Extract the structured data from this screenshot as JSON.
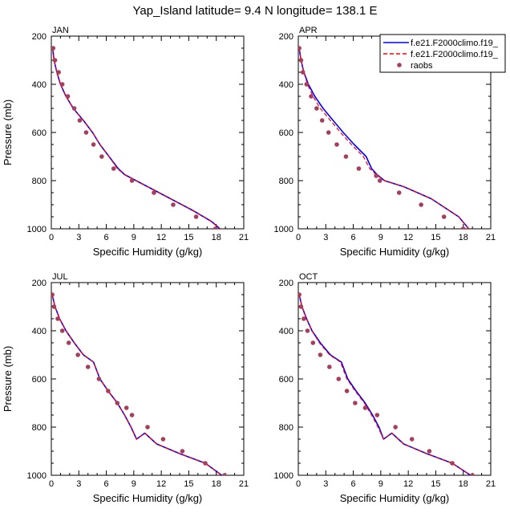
{
  "figure": {
    "title": "Yap_Island  latitude= 9.4 N longitude= 138.1 E"
  },
  "colors": {
    "model1": "#0000ff",
    "model2": "#ff0000",
    "raobs": "#a4405c"
  },
  "legend": {
    "placement": "top-right of APR panel",
    "entries": [
      {
        "label": "f.e21.F2000climo.f19_",
        "style": "solid-line",
        "color": "#0000ff"
      },
      {
        "label": "f.e21.F2000climo.f19_",
        "style": "dashed-line",
        "color": "#ff0000"
      },
      {
        "label": "raobs",
        "style": "marker",
        "color": "#a4405c"
      }
    ]
  },
  "chart_data": [
    {
      "type": "line",
      "panel": "JAN",
      "title": "JAN",
      "xlabel": "Specific Humidity (g/kg)",
      "ylabel": "Pressure (mb)",
      "xlim": [
        0,
        21
      ],
      "ylim": [
        1000,
        200
      ],
      "y_reversed": true,
      "xticks": [
        "0",
        "3",
        "6",
        "9",
        "12",
        "15",
        "18",
        "21"
      ],
      "yticks": [
        "200",
        "400",
        "600",
        "800",
        "1000"
      ],
      "series": [
        {
          "name": "f.e21.F2000climo.f19_",
          "style": "solid",
          "color": "#0000ff",
          "x": [
            0.15,
            0.3,
            0.6,
            1.0,
            1.6,
            2.4,
            3.5,
            4.5,
            5.3,
            6.3,
            7.3,
            8.0,
            10.5,
            13.0,
            15.5,
            17.5,
            18.4
          ],
          "y": [
            250,
            300,
            350,
            400,
            450,
            500,
            550,
            600,
            650,
            700,
            750,
            775,
            825,
            875,
            925,
            970,
            1000
          ]
        },
        {
          "name": "f.e21.F2000climo.f19_",
          "style": "dashed",
          "color": "#ff0000",
          "x": [
            0.15,
            0.3,
            0.6,
            1.0,
            1.6,
            2.4,
            3.5,
            4.5,
            5.3,
            6.3,
            7.2,
            8.0,
            10.5,
            13.0,
            15.5,
            17.5,
            18.4
          ],
          "y": [
            250,
            300,
            350,
            400,
            450,
            500,
            550,
            600,
            650,
            700,
            750,
            775,
            825,
            875,
            925,
            970,
            1000
          ]
        },
        {
          "name": "raobs",
          "style": "marker",
          "color": "#a4405c",
          "x": [
            0.2,
            0.4,
            0.8,
            1.2,
            1.8,
            2.5,
            3.1,
            3.8,
            4.6,
            5.5,
            6.8,
            8.8,
            11.2,
            13.3,
            15.8,
            17.9
          ],
          "y": [
            250,
            300,
            350,
            400,
            450,
            500,
            550,
            600,
            650,
            700,
            750,
            800,
            850,
            900,
            950,
            1000
          ]
        }
      ]
    },
    {
      "type": "line",
      "panel": "APR",
      "title": "APR",
      "xlabel": "Specific Humidity (g/kg)",
      "ylabel": "",
      "xlim": [
        0,
        21
      ],
      "ylim": [
        1000,
        200
      ],
      "y_reversed": true,
      "xticks": [
        "0",
        "3",
        "6",
        "9",
        "12",
        "15",
        "18",
        "21"
      ],
      "yticks": [
        "200",
        "400",
        "600",
        "800",
        "1000"
      ],
      "series": [
        {
          "name": "f.e21.F2000climo.f19_",
          "style": "solid",
          "color": "#0000ff",
          "x": [
            0.1,
            0.3,
            0.6,
            1.1,
            1.8,
            2.7,
            3.8,
            4.9,
            6.1,
            7.4,
            8.0,
            8.6,
            9.4,
            11.5,
            14.5,
            17.5,
            18.6
          ],
          "y": [
            250,
            300,
            350,
            400,
            450,
            500,
            550,
            600,
            650,
            700,
            750,
            775,
            800,
            825,
            875,
            950,
            1000
          ]
        },
        {
          "name": "f.e21.F2000climo.f19_",
          "style": "dashed",
          "color": "#ff0000",
          "x": [
            0.1,
            0.3,
            0.6,
            1.0,
            1.6,
            2.4,
            3.5,
            4.6,
            5.8,
            7.1,
            7.8,
            8.5,
            9.4,
            11.5,
            14.5,
            17.5,
            18.6
          ],
          "y": [
            250,
            300,
            350,
            400,
            450,
            500,
            550,
            600,
            650,
            700,
            750,
            775,
            800,
            825,
            875,
            950,
            1000
          ]
        },
        {
          "name": "raobs",
          "style": "marker",
          "color": "#a4405c",
          "x": [
            0.1,
            0.3,
            0.5,
            0.9,
            1.4,
            2.0,
            2.6,
            3.3,
            4.2,
            5.2,
            6.6,
            8.5,
            8.9,
            11.0,
            13.4,
            15.9,
            18.0
          ],
          "y": [
            250,
            300,
            350,
            400,
            450,
            500,
            550,
            600,
            650,
            700,
            750,
            780,
            800,
            850,
            900,
            950,
            1000
          ]
        }
      ]
    },
    {
      "type": "line",
      "panel": "JUL",
      "title": "JUL",
      "xlabel": "Specific Humidity (g/kg)",
      "ylabel": "Pressure (mb)",
      "xlim": [
        0,
        21
      ],
      "ylim": [
        1000,
        200
      ],
      "y_reversed": true,
      "xticks": [
        "0",
        "3",
        "6",
        "9",
        "12",
        "15",
        "18",
        "21"
      ],
      "yticks": [
        "200",
        "400",
        "600",
        "800",
        "1000"
      ],
      "series": [
        {
          "name": "f.e21.F2000climo.f19_",
          "style": "solid",
          "color": "#0000ff",
          "x": [
            0.1,
            0.4,
            0.9,
            1.6,
            2.5,
            3.5,
            4.6,
            5.3,
            6.2,
            7.2,
            8.0,
            8.7,
            9.3,
            10.2,
            11.5,
            14.0,
            16.8,
            18.6
          ],
          "y": [
            250,
            300,
            350,
            400,
            450,
            500,
            530,
            600,
            650,
            700,
            750,
            800,
            850,
            825,
            870,
            910,
            950,
            1000
          ]
        },
        {
          "name": "f.e21.F2000climo.f19_",
          "style": "dashed",
          "color": "#ff0000",
          "x": [
            0.1,
            0.4,
            0.9,
            1.6,
            2.5,
            3.5,
            4.6,
            5.3,
            6.2,
            7.2,
            8.0,
            8.7,
            9.3,
            10.2,
            11.5,
            14.0,
            16.8,
            18.6
          ],
          "y": [
            250,
            300,
            350,
            400,
            450,
            500,
            530,
            600,
            650,
            700,
            750,
            800,
            850,
            825,
            870,
            910,
            950,
            1000
          ]
        },
        {
          "name": "raobs",
          "style": "marker",
          "color": "#a4405c",
          "x": [
            0.1,
            0.3,
            0.7,
            1.2,
            1.9,
            2.9,
            4.0,
            5.2,
            6.2,
            7.2,
            8.2,
            8.8,
            10.5,
            12.2,
            14.3,
            16.8,
            18.9
          ],
          "y": [
            250,
            300,
            350,
            400,
            450,
            500,
            550,
            600,
            650,
            700,
            720,
            750,
            800,
            850,
            900,
            950,
            1000
          ]
        }
      ]
    },
    {
      "type": "line",
      "panel": "OCT",
      "title": "OCT",
      "xlabel": "Specific Humidity (g/kg)",
      "ylabel": "",
      "xlim": [
        0,
        21
      ],
      "ylim": [
        1000,
        200
      ],
      "y_reversed": true,
      "xticks": [
        "0",
        "3",
        "6",
        "9",
        "12",
        "15",
        "18",
        "21"
      ],
      "yticks": [
        "200",
        "400",
        "600",
        "800",
        "1000"
      ],
      "series": [
        {
          "name": "f.e21.F2000climo.f19_",
          "style": "solid",
          "color": "#0000ff",
          "x": [
            0.1,
            0.4,
            0.9,
            1.5,
            2.4,
            3.5,
            4.7,
            5.4,
            6.3,
            7.3,
            8.1,
            8.8,
            9.3,
            10.2,
            11.5,
            14.0,
            16.8,
            18.8
          ],
          "y": [
            250,
            300,
            350,
            400,
            450,
            500,
            530,
            600,
            650,
            700,
            750,
            800,
            850,
            825,
            870,
            910,
            950,
            1000
          ]
        },
        {
          "name": "f.e21.F2000climo.f19_",
          "style": "dashed",
          "color": "#ff0000",
          "x": [
            0.1,
            0.4,
            0.9,
            1.5,
            2.3,
            3.4,
            4.6,
            5.3,
            6.2,
            7.2,
            8.0,
            8.7,
            9.3,
            10.2,
            11.5,
            14.0,
            16.8,
            18.8
          ],
          "y": [
            250,
            300,
            350,
            400,
            450,
            500,
            530,
            600,
            650,
            700,
            750,
            800,
            850,
            825,
            870,
            910,
            950,
            1000
          ]
        },
        {
          "name": "raobs",
          "style": "marker",
          "color": "#a4405c",
          "x": [
            0.1,
            0.3,
            0.6,
            1.0,
            1.6,
            2.4,
            3.4,
            4.4,
            5.3,
            6.2,
            7.3,
            8.6,
            10.6,
            12.4,
            14.3,
            16.8,
            19.0
          ],
          "y": [
            250,
            300,
            350,
            400,
            450,
            500,
            550,
            600,
            650,
            700,
            720,
            750,
            800,
            850,
            900,
            950,
            1000
          ]
        }
      ]
    }
  ]
}
